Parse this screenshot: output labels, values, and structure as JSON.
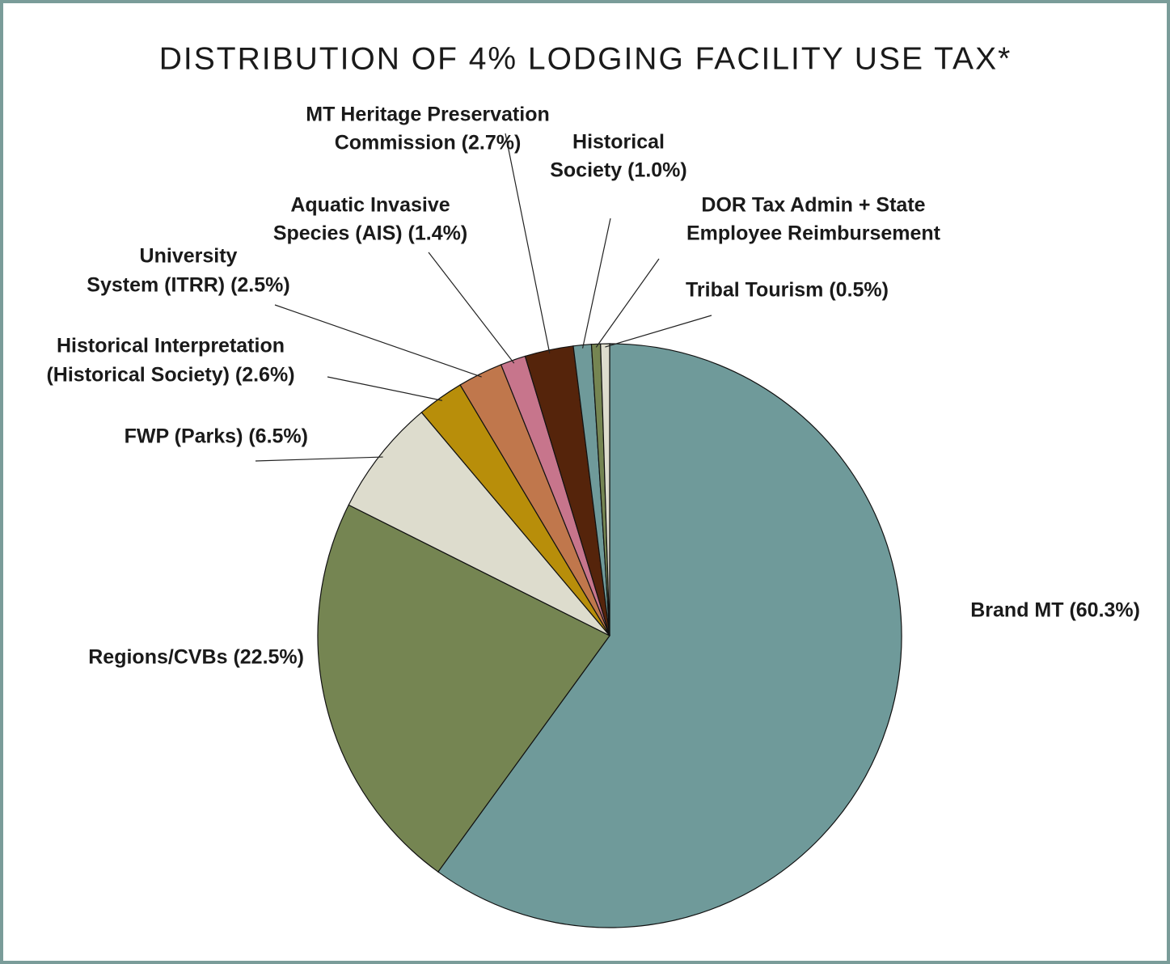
{
  "chart_data": {
    "type": "pie",
    "title": "DISTRIBUTION OF 4% LODGING FACILITY USE TAX*",
    "categories": [
      [
        "Brand MT (60.3%)"
      ],
      [
        "Regions/CVBs (22.5%)"
      ],
      [
        "FWP (Parks) (6.5%)"
      ],
      [
        "Historical Interpretation",
        "(Historical Society) (2.6%)"
      ],
      [
        "University",
        "System (ITRR) (2.5%)"
      ],
      [
        "Aquatic Invasive",
        "Species (AIS) (1.4%)"
      ],
      [
        "MT Heritage Preservation",
        "Commission (2.7%)"
      ],
      [
        "Historical",
        "Society (1.0%)"
      ],
      [
        "DOR Tax Admin + State",
        "Employee Reimbursement"
      ],
      [
        "Tribal Tourism (0.5%)"
      ]
    ],
    "values": [
      60.3,
      22.5,
      6.5,
      2.6,
      2.5,
      1.4,
      2.7,
      1.0,
      0.5,
      0.5
    ],
    "colors": [
      "#6f9a9a",
      "#758552",
      "#dddccd",
      "#b88e0a",
      "#c0774c",
      "#c7758c",
      "#55240b",
      "#6f9a9a",
      "#758552",
      "#dddccd"
    ]
  }
}
